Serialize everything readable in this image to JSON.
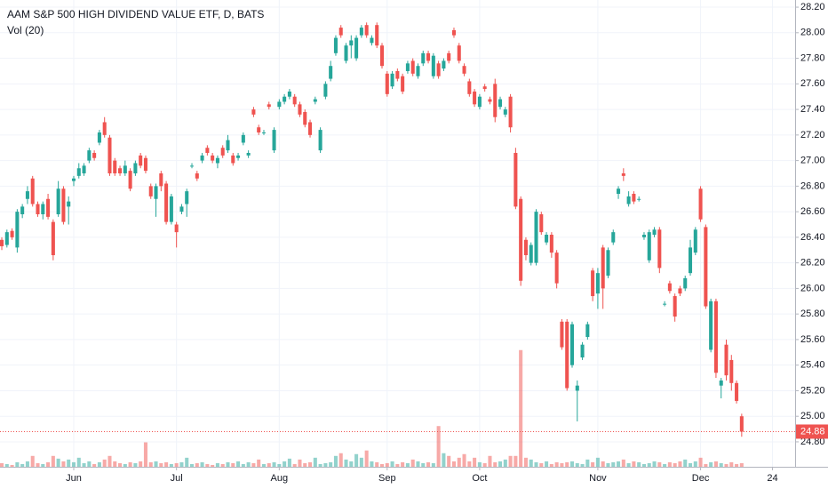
{
  "chart_data": {
    "type": "candlestick",
    "title": "AAM S&P 500 HIGH DIVIDEND VALUE ETF, D, BATS",
    "volume_label": "Vol (20)",
    "up_color": "#26a69a",
    "down_color": "#ef5350",
    "grid": true,
    "open": [
      26.38,
      26.34,
      26.45,
      26.32,
      26.58,
      26.7,
      26.86,
      26.66,
      26.58,
      26.7,
      26.52,
      26.58,
      26.78,
      26.64,
      26.84,
      26.88,
      26.9,
      27.0,
      27.06,
      27.14,
      27.3,
      27.18,
      27.0,
      26.94,
      26.9,
      26.92,
      26.9,
      27.04,
      27.02,
      26.8,
      26.7,
      26.9,
      26.82,
      26.52,
      26.5,
      26.6,
      26.66,
      26.96,
      26.9,
      27.0,
      27.1,
      27.04,
      26.98,
      27.1,
      27.08,
      27.04,
      27.02,
      27.14,
      27.04,
      27.4,
      27.26,
      27.22,
      27.44,
      27.08,
      27.42,
      27.46,
      27.5,
      27.5,
      27.44,
      27.38,
      27.3,
      27.46,
      27.08,
      27.5,
      27.64,
      27.84,
      28.04,
      27.78,
      27.9,
      27.8,
      27.98,
      28.06,
      27.92,
      28.06,
      27.9,
      27.68,
      27.58,
      27.7,
      27.66,
      27.7,
      27.78,
      27.66,
      27.76,
      27.84,
      27.66,
      27.76,
      27.72,
      27.84,
      28.02,
      27.9,
      27.74,
      27.62,
      27.54,
      27.42,
      27.58,
      27.48,
      27.6,
      27.42,
      27.36,
      27.5,
      27.06,
      26.7,
      26.38,
      26.2,
      26.2,
      26.58,
      26.36,
      26.42,
      26.28,
      25.74,
      25.74,
      25.4,
      25.2,
      25.46,
      25.62,
      26.14,
      25.96,
      26.32,
      26.1,
      26.36,
      26.74,
      26.9,
      26.66,
      26.74,
      26.7,
      26.4,
      26.22,
      26.42,
      26.46,
      25.88,
      26.04,
      25.94,
      26.0,
      26.0,
      26.12,
      26.28,
      26.78,
      26.48,
      25.52,
      25.9,
      25.24,
      25.56,
      25.44,
      25.26,
      25.0
    ],
    "high": [
      26.4,
      26.46,
      26.47,
      26.62,
      26.66,
      26.8,
      26.88,
      26.68,
      26.68,
      26.74,
      26.54,
      26.84,
      26.8,
      26.72,
      26.88,
      26.98,
      26.98,
      27.1,
      27.08,
      27.24,
      27.34,
      27.2,
      27.02,
      26.96,
      27.0,
      26.94,
      27.0,
      27.06,
      27.04,
      26.82,
      26.82,
      26.92,
      26.84,
      26.74,
      26.52,
      26.66,
      26.78,
      26.98,
      26.92,
      27.06,
      27.12,
      27.06,
      27.04,
      27.12,
      27.2,
      27.06,
      27.06,
      27.22,
      27.08,
      27.42,
      27.28,
      27.24,
      27.46,
      27.26,
      27.48,
      27.52,
      27.56,
      27.52,
      27.46,
      27.4,
      27.32,
      27.5,
      27.26,
      27.62,
      27.78,
      27.98,
      28.06,
      27.92,
      27.98,
      27.98,
      28.06,
      28.08,
      27.98,
      28.08,
      27.92,
      27.7,
      27.7,
      27.72,
      27.68,
      27.78,
      27.8,
      27.76,
      27.86,
      27.86,
      27.84,
      27.78,
      27.8,
      27.86,
      28.04,
      27.92,
      27.76,
      27.64,
      27.56,
      27.52,
      27.6,
      27.5,
      27.64,
      27.5,
      27.42,
      27.52,
      27.1,
      26.72,
      26.4,
      26.36,
      26.62,
      26.6,
      26.44,
      26.44,
      26.3,
      25.76,
      25.76,
      25.74,
      25.28,
      25.58,
      25.74,
      26.16,
      26.16,
      26.34,
      26.32,
      26.46,
      26.8,
      26.94,
      26.76,
      26.76,
      26.72,
      26.44,
      26.46,
      26.48,
      26.48,
      25.9,
      26.06,
      25.96,
      26.02,
      26.1,
      26.38,
      26.48,
      26.8,
      26.5,
      25.92,
      25.92,
      25.3,
      25.6,
      25.48,
      25.28,
      25.02
    ],
    "low": [
      26.3,
      26.32,
      26.38,
      26.28,
      26.55,
      26.66,
      26.64,
      26.56,
      26.54,
      26.54,
      26.22,
      26.56,
      26.5,
      26.5,
      26.8,
      26.86,
      26.88,
      26.98,
      27.0,
      27.12,
      27.18,
      26.88,
      26.88,
      26.88,
      26.88,
      26.76,
      26.88,
      26.94,
      26.9,
      26.7,
      26.56,
      26.76,
      26.5,
      26.5,
      26.32,
      26.58,
      26.56,
      26.94,
      26.84,
      26.98,
      27.04,
      26.98,
      26.94,
      27.02,
      27.06,
      26.96,
      27.0,
      27.12,
      27.02,
      27.34,
      27.2,
      27.2,
      27.4,
      27.06,
      27.4,
      27.44,
      27.48,
      27.42,
      27.34,
      27.26,
      27.18,
      27.44,
      27.06,
      27.48,
      27.62,
      27.82,
      27.96,
      27.76,
      27.8,
      27.78,
      27.96,
      27.96,
      27.9,
      27.88,
      27.72,
      27.5,
      27.56,
      27.62,
      27.52,
      27.68,
      27.66,
      27.64,
      27.74,
      27.76,
      27.64,
      27.64,
      27.7,
      27.76,
      27.96,
      27.76,
      27.66,
      27.5,
      27.42,
      27.4,
      27.54,
      27.44,
      27.3,
      27.4,
      27.34,
      27.22,
      26.62,
      26.02,
      26.22,
      26.18,
      26.18,
      26.42,
      26.34,
      26.24,
      26.0,
      25.52,
      25.2,
      25.38,
      24.96,
      25.44,
      25.6,
      25.9,
      25.84,
      25.84,
      26.08,
      26.34,
      26.7,
      26.84,
      26.64,
      26.66,
      26.68,
      26.38,
      26.2,
      26.4,
      26.12,
      25.86,
      25.96,
      25.74,
      25.94,
      25.98,
      26.1,
      26.26,
      26.52,
      25.84,
      25.5,
      25.3,
      25.14,
      25.28,
      25.2,
      25.1,
      24.84
    ],
    "close": [
      26.33,
      26.44,
      26.4,
      26.6,
      26.64,
      26.76,
      26.66,
      26.58,
      26.66,
      26.56,
      26.26,
      26.78,
      26.52,
      26.68,
      26.86,
      26.94,
      26.96,
      27.08,
      27.02,
      27.22,
      27.2,
      26.9,
      26.9,
      26.9,
      26.96,
      26.78,
      26.98,
      26.96,
      26.92,
      26.72,
      26.8,
      26.8,
      26.52,
      26.72,
      26.44,
      26.64,
      26.76,
      26.96,
      26.86,
      27.04,
      27.06,
      27.0,
      27.02,
      27.04,
      27.16,
      26.98,
      27.04,
      27.2,
      27.06,
      27.36,
      27.22,
      27.22,
      27.42,
      27.24,
      27.46,
      27.5,
      27.54,
      27.44,
      27.36,
      27.28,
      27.2,
      27.48,
      27.24,
      27.6,
      27.74,
      27.96,
      27.98,
      27.9,
      27.94,
      27.96,
      28.04,
      27.98,
      27.96,
      27.9,
      27.74,
      27.52,
      27.68,
      27.64,
      27.54,
      27.76,
      27.68,
      27.74,
      27.84,
      27.78,
      27.82,
      27.66,
      27.78,
      27.78,
      27.98,
      27.78,
      27.68,
      27.52,
      27.44,
      27.5,
      27.56,
      27.46,
      27.34,
      27.48,
      27.4,
      27.26,
      26.64,
      26.06,
      26.26,
      26.34,
      26.6,
      26.44,
      26.42,
      26.28,
      26.04,
      25.54,
      25.22,
      25.72,
      25.24,
      25.56,
      25.72,
      25.94,
      26.12,
      26.0,
      26.3,
      26.44,
      26.78,
      26.88,
      26.72,
      26.68,
      26.7,
      26.42,
      26.44,
      26.46,
      26.16,
      25.88,
      25.98,
      25.78,
      25.96,
      26.08,
      26.32,
      26.46,
      26.54,
      25.86,
      25.9,
      25.34,
      25.28,
      25.32,
      25.26,
      25.12,
      24.88
    ],
    "volume": [
      4,
      3,
      2,
      5,
      3,
      6,
      12,
      4,
      3,
      5,
      12,
      9,
      6,
      8,
      5,
      10,
      4,
      6,
      3,
      5,
      8,
      12,
      6,
      4,
      3,
      5,
      4,
      6,
      27,
      5,
      6,
      4,
      5,
      3,
      4,
      5,
      10,
      3,
      4,
      5,
      3,
      2,
      4,
      3,
      5,
      4,
      6,
      3,
      5,
      4,
      8,
      3,
      4,
      5,
      3,
      6,
      9,
      3,
      8,
      4,
      5,
      10,
      3,
      4,
      5,
      12,
      15,
      8,
      6,
      14,
      10,
      18,
      6,
      5,
      3,
      4,
      6,
      3,
      5,
      4,
      8,
      6,
      4,
      5,
      4,
      45,
      15,
      12,
      6,
      10,
      14,
      6,
      10,
      5,
      4,
      12,
      5,
      6,
      8,
      12,
      12,
      129,
      10,
      8,
      5,
      4,
      6,
      3,
      5,
      4,
      5,
      6,
      4,
      3,
      8,
      5,
      10,
      6,
      4,
      5,
      6,
      8,
      4,
      6,
      5,
      3,
      4,
      6,
      5,
      3,
      5,
      4,
      6,
      8,
      4,
      6,
      10,
      3,
      5,
      6,
      4,
      3,
      5,
      3,
      4
    ],
    "last_price": 24.88,
    "ylim": [
      24.605,
      28.256
    ],
    "yticks": [
      {
        "value": 24.8,
        "label": "24.80"
      },
      {
        "value": 25.0,
        "label": "25.00"
      },
      {
        "value": 25.2,
        "label": "25.20"
      },
      {
        "value": 25.4,
        "label": "25.40"
      },
      {
        "value": 25.6,
        "label": "25.60"
      },
      {
        "value": 25.8,
        "label": "25.80"
      },
      {
        "value": 26.0,
        "label": "26.00"
      },
      {
        "value": 26.2,
        "label": "26.20"
      },
      {
        "value": 26.4,
        "label": "26.40"
      },
      {
        "value": 26.6,
        "label": "26.60"
      },
      {
        "value": 26.8,
        "label": "26.80"
      },
      {
        "value": 27.0,
        "label": "27.00"
      },
      {
        "value": 27.2,
        "label": "27.20"
      },
      {
        "value": 27.4,
        "label": "27.40"
      },
      {
        "value": 27.6,
        "label": "27.60"
      },
      {
        "value": 27.8,
        "label": "27.80"
      },
      {
        "value": 28.0,
        "label": "28.00"
      },
      {
        "value": 28.2,
        "label": "28.20"
      }
    ],
    "xlim": [
      -0.35,
      154.4
    ],
    "xticks": [
      {
        "value": 14,
        "label": "Jun"
      },
      {
        "value": 34,
        "label": "Jul"
      },
      {
        "value": 54,
        "label": "Aug"
      },
      {
        "value": 75,
        "label": "Sep"
      },
      {
        "value": 93,
        "label": "Oct"
      },
      {
        "value": 116,
        "label": "Nov"
      },
      {
        "value": 136,
        "label": "Dec"
      },
      {
        "value": 150,
        "label": "24"
      }
    ]
  }
}
